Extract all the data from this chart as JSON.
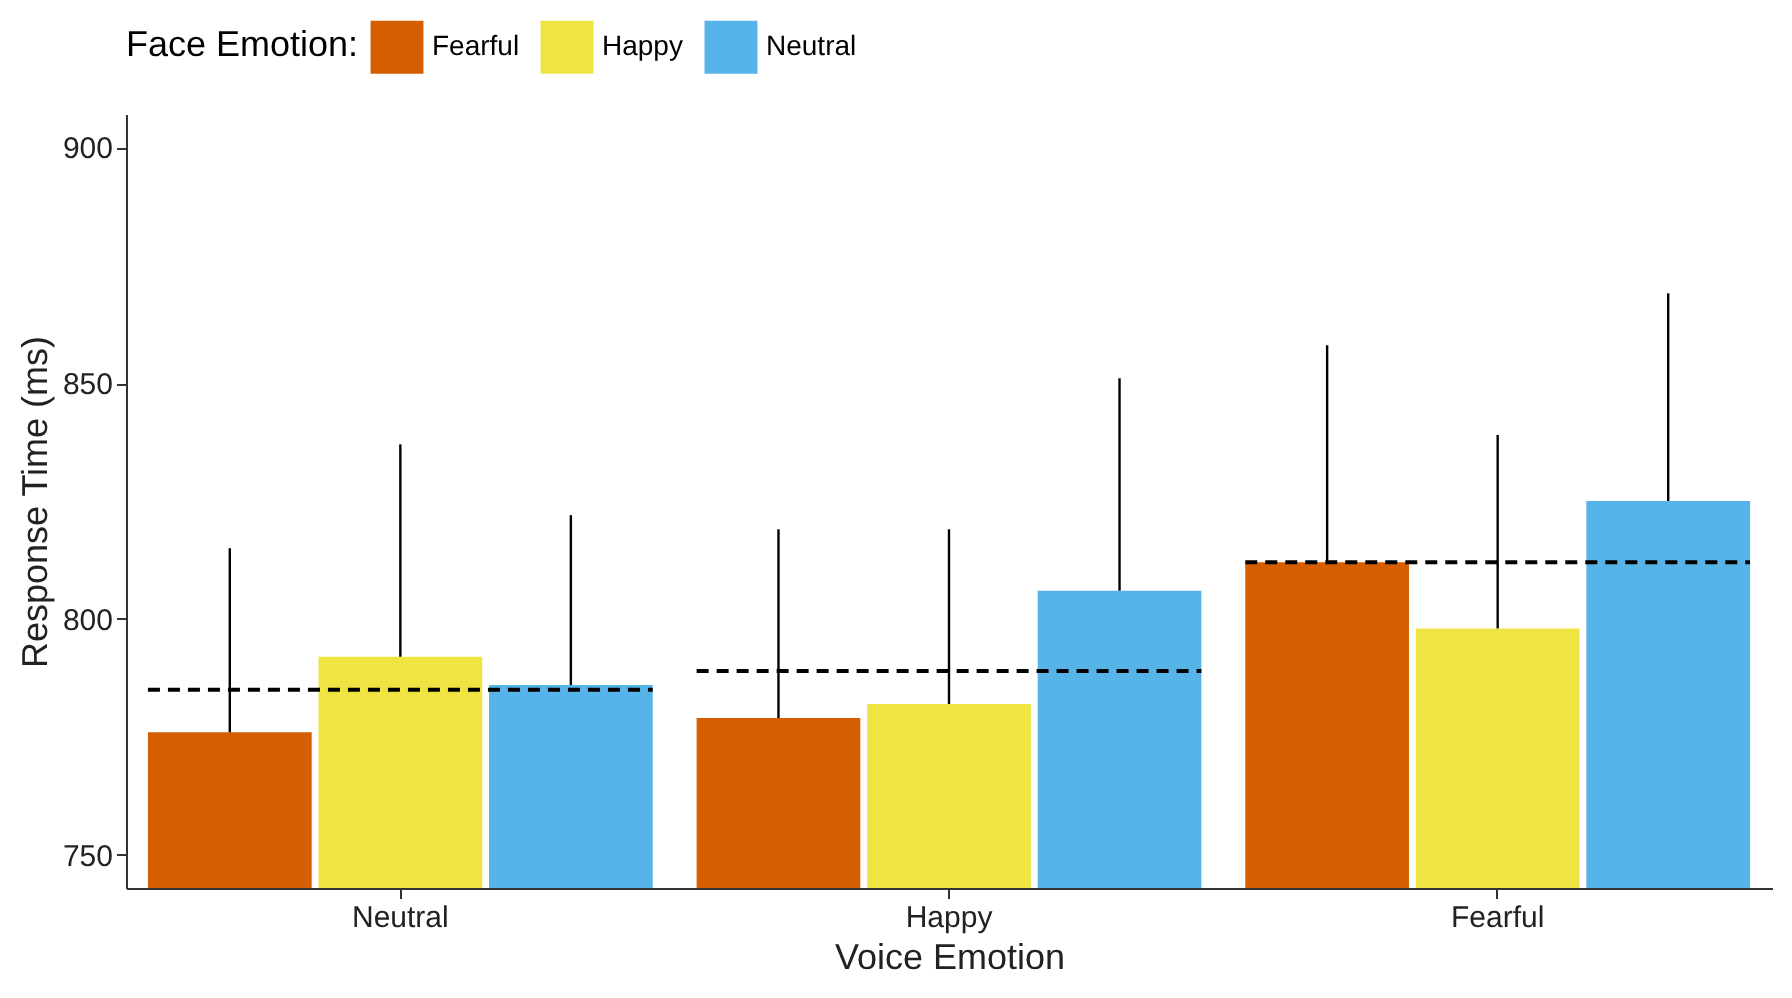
{
  "chart_data": {
    "type": "bar",
    "xlabel": "Voice Emotion",
    "ylabel": "Response Time (ms)",
    "legend_title": "Face Emotion:",
    "legend": "top",
    "grid": false,
    "categories": [
      "Neutral",
      "Happy",
      "Fearful"
    ],
    "ylim": [
      743,
      907
    ],
    "yticks": [
      750,
      800,
      850,
      900
    ],
    "series": [
      {
        "name": "Fearful",
        "color": "#d55e00",
        "values": [
          776,
          779,
          812
        ],
        "errors": [
          [
            776,
            815
          ],
          [
            779,
            819
          ],
          [
            812,
            858
          ]
        ]
      },
      {
        "name": "Happy",
        "color": "#f0e442",
        "values": [
          792,
          782,
          798
        ],
        "errors": [
          [
            792,
            837
          ],
          [
            782,
            819
          ],
          [
            798,
            839
          ]
        ]
      },
      {
        "name": "Neutral",
        "color": "#56b4e9",
        "values": [
          786,
          806,
          825
        ],
        "errors": [
          [
            786,
            822
          ],
          [
            806,
            851
          ],
          [
            825,
            869
          ]
        ]
      }
    ],
    "ref_lines": [
      {
        "axis": "y",
        "value": 785,
        "color": "#000000",
        "line_style": "dashed"
      },
      {
        "axis": "y",
        "value": 789,
        "color": "#000000",
        "line_style": "dashed"
      },
      {
        "axis": "y",
        "value": 812,
        "color": "#000000",
        "line_style": "dashed"
      }
    ]
  }
}
